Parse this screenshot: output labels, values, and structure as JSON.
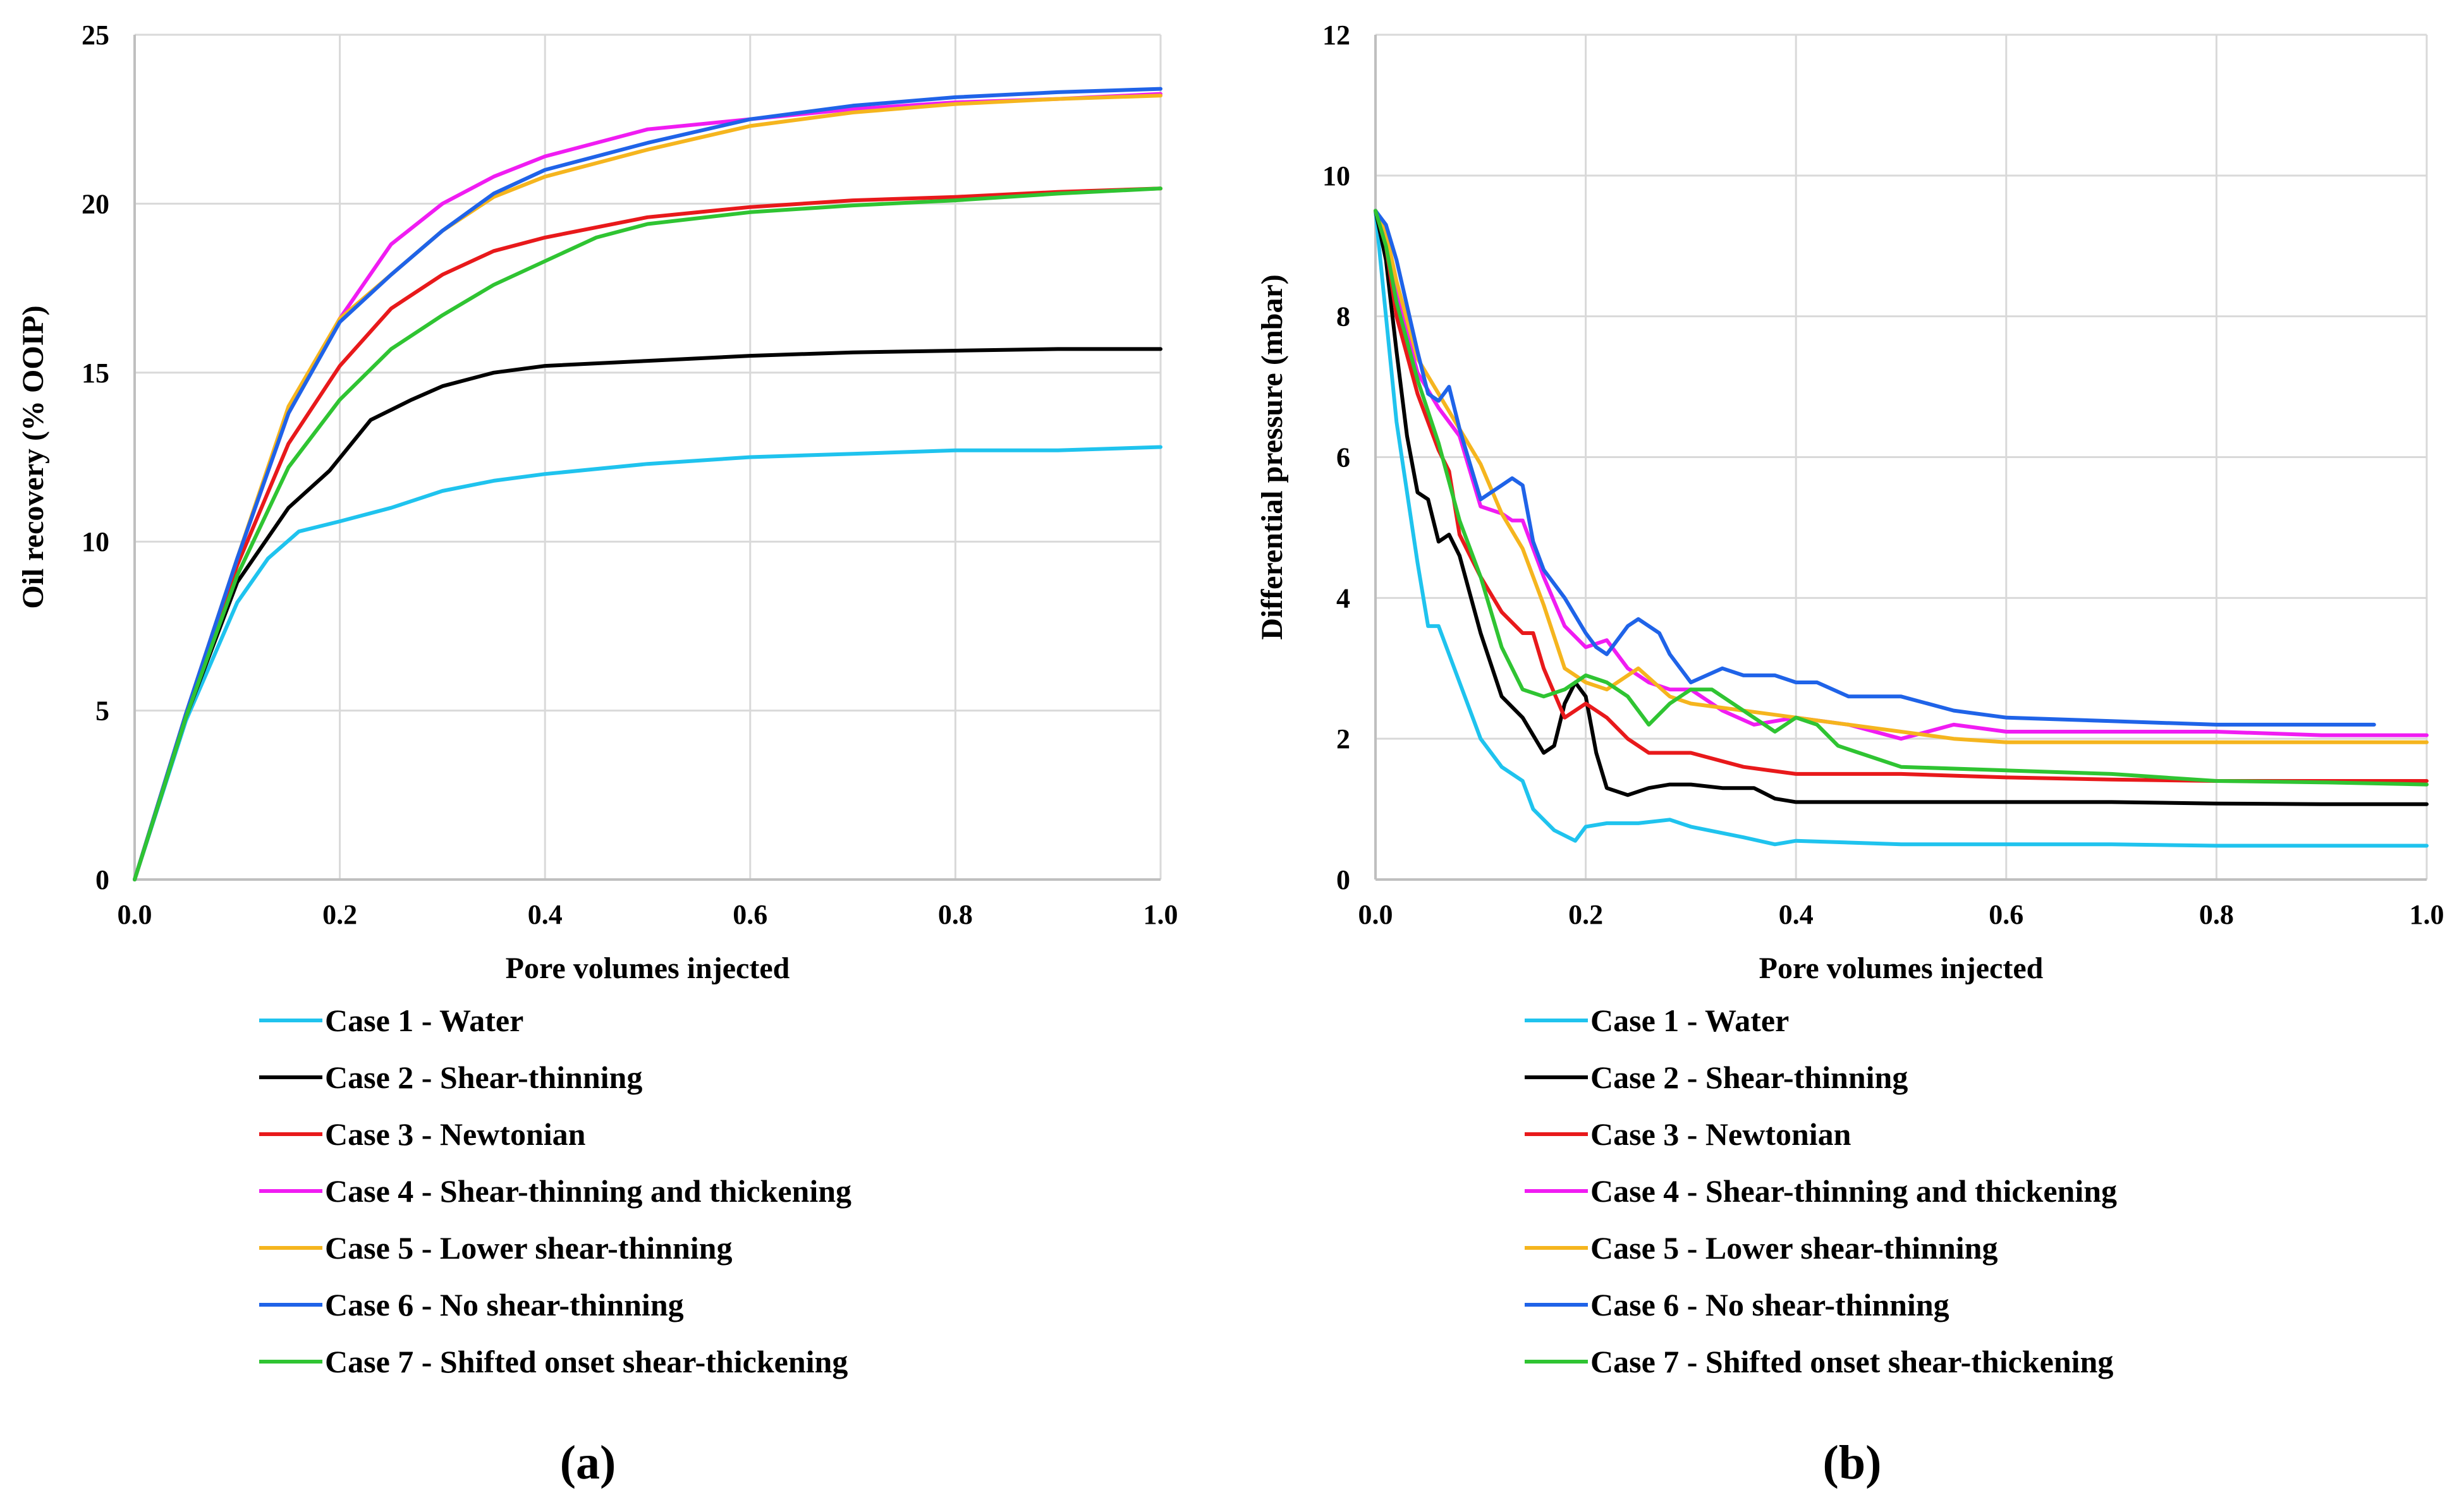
{
  "chart_data": [
    {
      "type": "line",
      "panel_label": "(a)",
      "title": "",
      "xlabel": "Pore volumes injected",
      "ylabel": "Oil recovery (% OOIP)",
      "xlim": [
        0,
        1.0
      ],
      "ylim": [
        0,
        25
      ],
      "xticks": [
        "0.0",
        "0.2",
        "0.4",
        "0.6",
        "0.8",
        "1.0"
      ],
      "yticks": [
        "0",
        "5",
        "10",
        "15",
        "20",
        "25"
      ],
      "grid": true,
      "legend_position": "below",
      "series": [
        {
          "name": "Case 1 - Water",
          "color": "#1fc3ee",
          "x": [
            0,
            0.05,
            0.1,
            0.13,
            0.16,
            0.2,
            0.25,
            0.3,
            0.35,
            0.4,
            0.5,
            0.6,
            0.7,
            0.8,
            0.9,
            1.0
          ],
          "y": [
            0,
            4.7,
            8.2,
            9.5,
            10.3,
            10.6,
            11.0,
            11.5,
            11.8,
            12.0,
            12.3,
            12.5,
            12.6,
            12.7,
            12.7,
            12.8
          ]
        },
        {
          "name": "Case 2 - Shear-thinning",
          "color": "#000000",
          "x": [
            0,
            0.05,
            0.1,
            0.15,
            0.19,
            0.23,
            0.27,
            0.3,
            0.35,
            0.4,
            0.5,
            0.6,
            0.7,
            0.8,
            0.9,
            1.0
          ],
          "y": [
            0,
            4.8,
            8.8,
            11.0,
            12.1,
            13.6,
            14.2,
            14.6,
            15.0,
            15.2,
            15.35,
            15.5,
            15.6,
            15.65,
            15.7,
            15.7
          ]
        },
        {
          "name": "Case 3 - Newtonian",
          "color": "#e8191b",
          "x": [
            0,
            0.05,
            0.1,
            0.15,
            0.2,
            0.25,
            0.3,
            0.35,
            0.4,
            0.5,
            0.6,
            0.7,
            0.8,
            0.9,
            1.0
          ],
          "y": [
            0,
            4.9,
            9.3,
            12.9,
            15.2,
            16.9,
            17.9,
            18.6,
            19.0,
            19.6,
            19.9,
            20.1,
            20.2,
            20.35,
            20.45
          ]
        },
        {
          "name": "Case 4 - Shear-thinning and thickening",
          "color": "#f01cf2",
          "x": [
            0,
            0.05,
            0.1,
            0.15,
            0.2,
            0.25,
            0.3,
            0.35,
            0.4,
            0.5,
            0.6,
            0.7,
            0.8,
            0.9,
            1.0
          ],
          "y": [
            0,
            4.9,
            9.5,
            13.8,
            16.6,
            18.8,
            20.0,
            20.8,
            21.4,
            22.2,
            22.5,
            22.8,
            23.0,
            23.1,
            23.25
          ]
        },
        {
          "name": "Case 5 - Lower shear-thinning",
          "color": "#f5b51e",
          "x": [
            0,
            0.05,
            0.1,
            0.15,
            0.2,
            0.25,
            0.3,
            0.35,
            0.4,
            0.5,
            0.6,
            0.7,
            0.8,
            0.9,
            1.0
          ],
          "y": [
            0,
            4.9,
            9.5,
            14.0,
            16.6,
            17.9,
            19.2,
            20.2,
            20.8,
            21.6,
            22.3,
            22.7,
            22.95,
            23.1,
            23.2
          ]
        },
        {
          "name": "Case 6 - No shear-thinning",
          "color": "#1f63e8",
          "x": [
            0,
            0.05,
            0.1,
            0.15,
            0.2,
            0.25,
            0.3,
            0.35,
            0.4,
            0.5,
            0.6,
            0.7,
            0.8,
            0.9,
            1.0
          ],
          "y": [
            0,
            4.9,
            9.5,
            13.8,
            16.5,
            17.9,
            19.2,
            20.3,
            21.0,
            21.8,
            22.5,
            22.9,
            23.15,
            23.3,
            23.4
          ]
        },
        {
          "name": "Case 7 - Shifted onset shear-thickening",
          "color": "#2fc432",
          "x": [
            0,
            0.05,
            0.1,
            0.15,
            0.2,
            0.25,
            0.3,
            0.35,
            0.4,
            0.45,
            0.5,
            0.6,
            0.7,
            0.8,
            0.9,
            1.0
          ],
          "y": [
            0,
            4.8,
            9.0,
            12.2,
            14.2,
            15.7,
            16.7,
            17.6,
            18.3,
            19.0,
            19.4,
            19.75,
            19.95,
            20.1,
            20.3,
            20.45
          ]
        }
      ]
    },
    {
      "type": "line",
      "panel_label": "(b)",
      "title": "",
      "xlabel": "Pore volumes injected",
      "ylabel": "Differential pressure (mbar)",
      "xlim": [
        0,
        1.0
      ],
      "ylim": [
        0,
        12
      ],
      "xticks": [
        "0.0",
        "0.2",
        "0.4",
        "0.6",
        "0.8",
        "1.0"
      ],
      "yticks": [
        "0",
        "2",
        "4",
        "6",
        "8",
        "10",
        "12"
      ],
      "grid": true,
      "legend_position": "below",
      "series": [
        {
          "name": "Case 1 - Water",
          "color": "#1fc3ee",
          "x": [
            0,
            0.01,
            0.02,
            0.04,
            0.05,
            0.06,
            0.07,
            0.08,
            0.1,
            0.12,
            0.14,
            0.15,
            0.17,
            0.19,
            0.2,
            0.22,
            0.25,
            0.28,
            0.3,
            0.35,
            0.38,
            0.4,
            0.5,
            0.6,
            0.7,
            0.8,
            0.9,
            1.0
          ],
          "y": [
            9.5,
            8.0,
            6.5,
            4.5,
            3.6,
            3.6,
            3.2,
            2.8,
            2.0,
            1.6,
            1.4,
            1.0,
            0.7,
            0.55,
            0.75,
            0.8,
            0.8,
            0.85,
            0.75,
            0.6,
            0.5,
            0.55,
            0.5,
            0.5,
            0.5,
            0.48,
            0.48,
            0.48
          ]
        },
        {
          "name": "Case 2 - Shear-thinning",
          "color": "#000000",
          "x": [
            0,
            0.01,
            0.02,
            0.03,
            0.04,
            0.05,
            0.06,
            0.07,
            0.08,
            0.1,
            0.12,
            0.14,
            0.16,
            0.17,
            0.18,
            0.19,
            0.2,
            0.21,
            0.22,
            0.24,
            0.26,
            0.28,
            0.3,
            0.33,
            0.36,
            0.38,
            0.4,
            0.5,
            0.6,
            0.7,
            0.8,
            0.9,
            1.0
          ],
          "y": [
            9.5,
            8.8,
            7.5,
            6.3,
            5.5,
            5.4,
            4.8,
            4.9,
            4.6,
            3.5,
            2.6,
            2.3,
            1.8,
            1.9,
            2.5,
            2.8,
            2.6,
            1.8,
            1.3,
            1.2,
            1.3,
            1.35,
            1.35,
            1.3,
            1.3,
            1.15,
            1.1,
            1.1,
            1.1,
            1.1,
            1.08,
            1.07,
            1.07
          ]
        },
        {
          "name": "Case 3 - Newtonian",
          "color": "#e8191b",
          "x": [
            0,
            0.01,
            0.02,
            0.04,
            0.06,
            0.07,
            0.08,
            0.1,
            0.12,
            0.14,
            0.15,
            0.16,
            0.18,
            0.2,
            0.22,
            0.24,
            0.26,
            0.3,
            0.35,
            0.4,
            0.5,
            0.6,
            0.7,
            0.8,
            0.9,
            1.0
          ],
          "y": [
            9.5,
            9.0,
            8.0,
            6.9,
            6.1,
            5.8,
            4.9,
            4.3,
            3.8,
            3.5,
            3.5,
            3.0,
            2.3,
            2.5,
            2.3,
            2.0,
            1.8,
            1.8,
            1.6,
            1.5,
            1.5,
            1.45,
            1.42,
            1.4,
            1.4,
            1.4
          ]
        },
        {
          "name": "Case 4 - Shear-thinning and thickening",
          "color": "#f01cf2",
          "x": [
            0,
            0.01,
            0.02,
            0.04,
            0.06,
            0.08,
            0.1,
            0.12,
            0.13,
            0.14,
            0.16,
            0.18,
            0.2,
            0.22,
            0.24,
            0.26,
            0.28,
            0.3,
            0.33,
            0.36,
            0.4,
            0.45,
            0.5,
            0.55,
            0.6,
            0.7,
            0.8,
            0.9,
            1.0
          ],
          "y": [
            9.5,
            9.1,
            8.3,
            7.2,
            6.7,
            6.3,
            5.3,
            5.2,
            5.1,
            5.1,
            4.3,
            3.6,
            3.3,
            3.4,
            3.0,
            2.8,
            2.7,
            2.7,
            2.4,
            2.2,
            2.3,
            2.2,
            2.0,
            2.2,
            2.1,
            2.1,
            2.1,
            2.05,
            2.05
          ]
        },
        {
          "name": "Case 5 - Lower shear-thinning",
          "color": "#f5b51e",
          "x": [
            0,
            0.01,
            0.02,
            0.04,
            0.06,
            0.08,
            0.1,
            0.12,
            0.14,
            0.16,
            0.18,
            0.2,
            0.22,
            0.25,
            0.28,
            0.3,
            0.35,
            0.4,
            0.45,
            0.5,
            0.55,
            0.6,
            0.7,
            0.8,
            0.9,
            1.0
          ],
          "y": [
            9.5,
            9.2,
            8.5,
            7.4,
            6.9,
            6.4,
            5.9,
            5.2,
            4.7,
            3.9,
            3.0,
            2.8,
            2.7,
            3.0,
            2.6,
            2.5,
            2.4,
            2.3,
            2.2,
            2.1,
            2.0,
            1.95,
            1.95,
            1.95,
            1.95,
            1.95
          ]
        },
        {
          "name": "Case 6 - No shear-thinning",
          "color": "#1f63e8",
          "x": [
            0,
            0.01,
            0.02,
            0.04,
            0.05,
            0.06,
            0.07,
            0.08,
            0.1,
            0.12,
            0.13,
            0.14,
            0.15,
            0.16,
            0.18,
            0.2,
            0.21,
            0.22,
            0.24,
            0.25,
            0.27,
            0.28,
            0.3,
            0.33,
            0.35,
            0.38,
            0.4,
            0.42,
            0.45,
            0.5,
            0.55,
            0.6,
            0.7,
            0.8,
            0.9,
            0.95
          ],
          "y": [
            9.5,
            9.3,
            8.8,
            7.5,
            6.9,
            6.8,
            7.0,
            6.4,
            5.4,
            5.6,
            5.7,
            5.6,
            4.8,
            4.4,
            4.0,
            3.5,
            3.3,
            3.2,
            3.6,
            3.7,
            3.5,
            3.2,
            2.8,
            3.0,
            2.9,
            2.9,
            2.8,
            2.8,
            2.6,
            2.6,
            2.4,
            2.3,
            2.25,
            2.2,
            2.2,
            2.2
          ]
        },
        {
          "name": "Case 7 - Shifted onset shear-thickening",
          "color": "#2fc432",
          "x": [
            0,
            0.01,
            0.02,
            0.04,
            0.06,
            0.08,
            0.1,
            0.12,
            0.14,
            0.16,
            0.18,
            0.2,
            0.22,
            0.24,
            0.26,
            0.28,
            0.3,
            0.32,
            0.34,
            0.36,
            0.38,
            0.4,
            0.42,
            0.44,
            0.46,
            0.5,
            0.6,
            0.7,
            0.8,
            0.9,
            1.0
          ],
          "y": [
            9.5,
            9.0,
            8.2,
            7.1,
            6.2,
            5.1,
            4.3,
            3.3,
            2.7,
            2.6,
            2.7,
            2.9,
            2.8,
            2.6,
            2.2,
            2.5,
            2.7,
            2.7,
            2.5,
            2.3,
            2.1,
            2.3,
            2.2,
            1.9,
            1.8,
            1.6,
            1.55,
            1.5,
            1.4,
            1.38,
            1.35
          ]
        }
      ]
    }
  ]
}
